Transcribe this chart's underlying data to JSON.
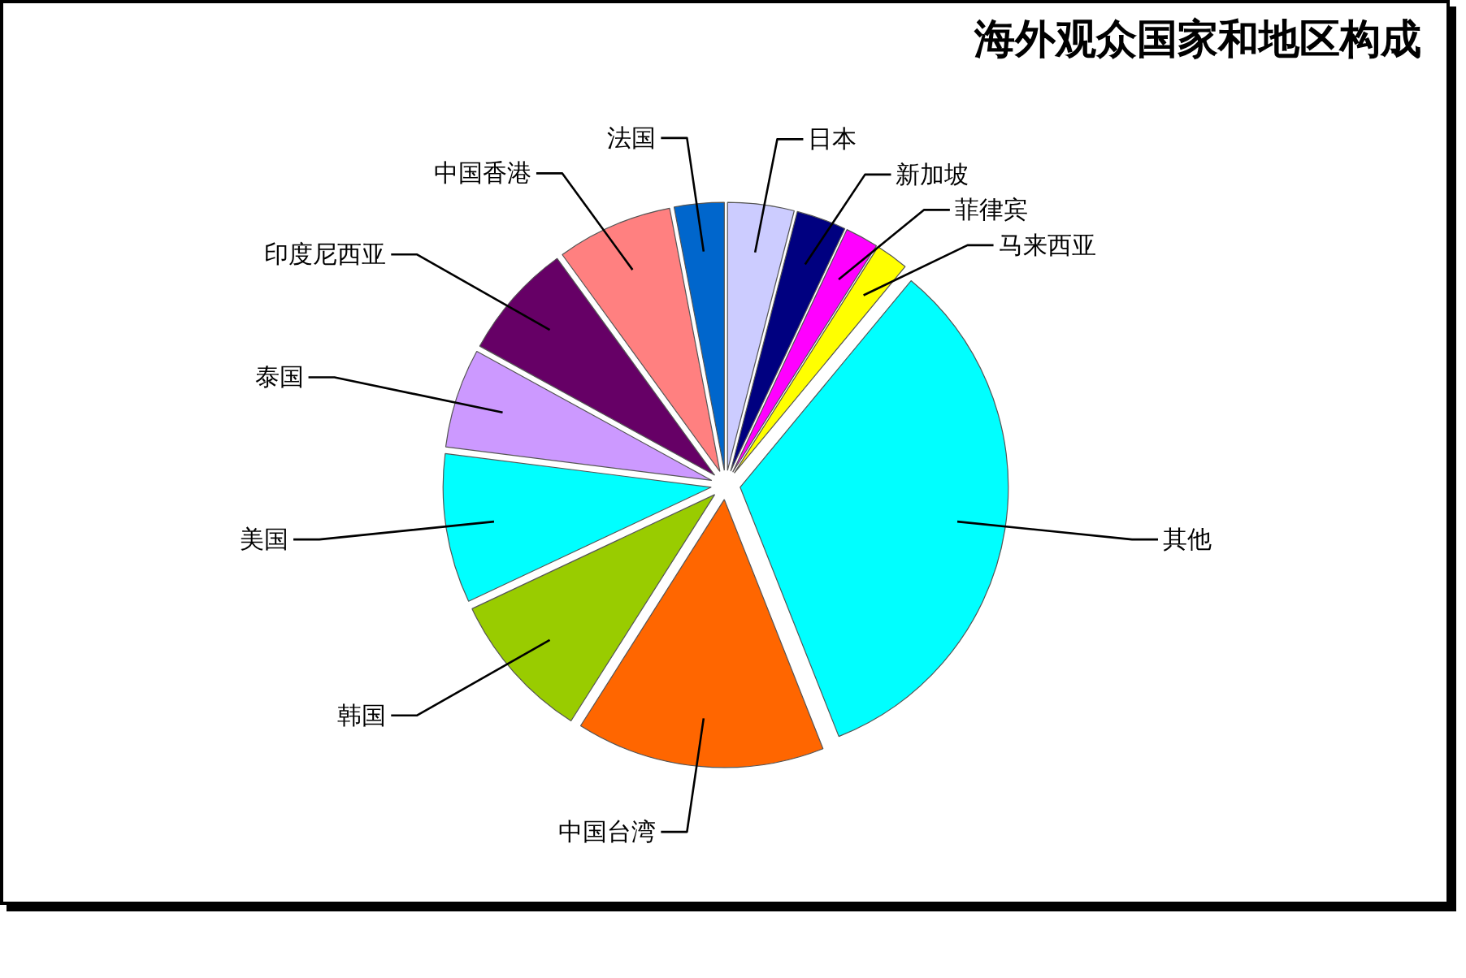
{
  "chart_data": {
    "type": "pie",
    "title": "海外观众国家和地区构成",
    "categories": [
      "日本",
      "新加坡",
      "菲律宾",
      "马来西亚",
      "其他",
      "中国台湾",
      "韩国",
      "美国",
      "泰国",
      "印度尼西亚",
      "中国香港",
      "法国"
    ],
    "values": [
      4,
      3,
      2,
      2,
      33,
      15,
      9,
      9,
      6,
      7,
      7,
      3
    ],
    "colors": [
      "#ccccff",
      "#000080",
      "#ff00ff",
      "#ffff00",
      "#00ffff",
      "#ff6600",
      "#99cc00",
      "#00ffff",
      "#cc99ff",
      "#660066",
      "#ff8080",
      "#0066cc"
    ]
  }
}
